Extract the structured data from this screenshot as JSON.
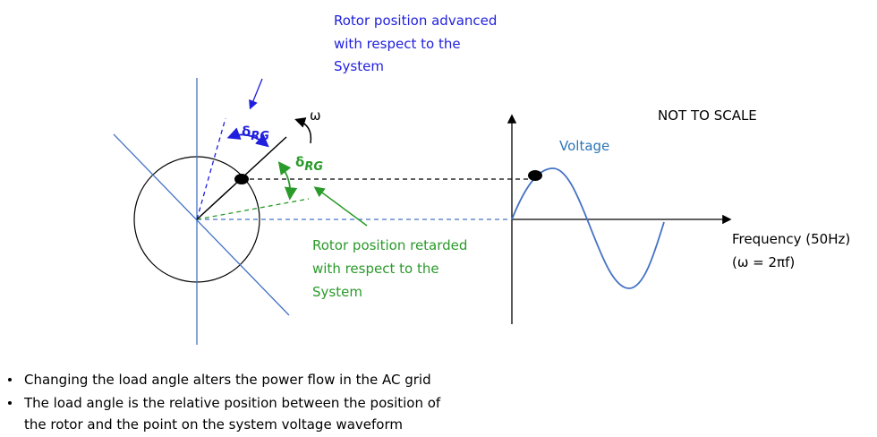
{
  "advanced_label": {
    "lines": [
      "Rotor position advanced",
      "with respect to the",
      "System"
    ]
  },
  "omega": "ω",
  "delta_blue": {
    "symbol": "δ",
    "subscript": "RG"
  },
  "delta_green": {
    "symbol": "δ",
    "subscript": "RG"
  },
  "note": "NOT TO SCALE",
  "wave_label": "Voltage",
  "x_axis_label": {
    "lines": [
      "Frequency (50Hz)",
      "(ω = 2πf)"
    ]
  },
  "retarded_label": {
    "lines": [
      "Rotor position retarded",
      "with respect to the",
      "System"
    ]
  },
  "bullets": [
    {
      "lines": [
        "Changing the load angle alters the power flow in the AC grid"
      ]
    },
    {
      "lines": [
        "The load angle is the relative position between the position of",
        "the rotor and the point on the system voltage waveform"
      ]
    }
  ]
}
